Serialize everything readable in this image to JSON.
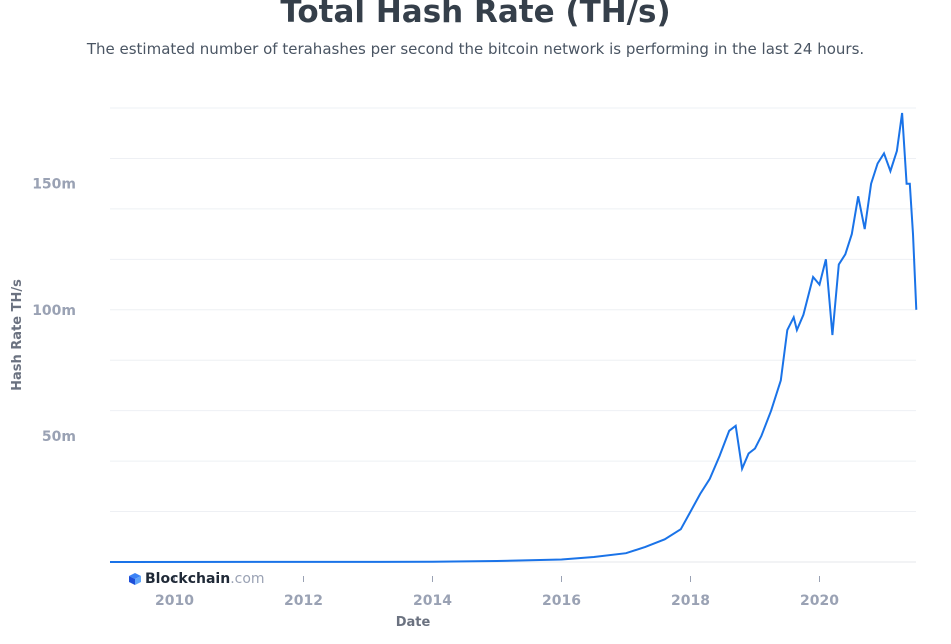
{
  "chart_data": {
    "type": "line",
    "title": "Total Hash Rate (TH/s)",
    "subtitle": "The estimated number of terahashes per second the bitcoin network is performing in the last 24 hours.",
    "xlabel": "Date",
    "ylabel": "Hash Rate TH/s",
    "ylim": [
      0,
      180000000
    ],
    "xlim": [
      2009.0,
      2021.5
    ],
    "y_ticks": [
      {
        "value": 50000000,
        "label": "50m"
      },
      {
        "value": 100000000,
        "label": "100m"
      },
      {
        "value": 150000000,
        "label": "150m"
      }
    ],
    "x_ticks": [
      {
        "value": 2010,
        "label": "2010"
      },
      {
        "value": 2012,
        "label": "2012"
      },
      {
        "value": 2014,
        "label": "2014"
      },
      {
        "value": 2016,
        "label": "2016"
      },
      {
        "value": 2018,
        "label": "2018"
      },
      {
        "value": 2020,
        "label": "2020"
      }
    ],
    "grid": true,
    "line_color": "#1a73e8",
    "series": [
      {
        "x": [
          2009.0,
          2012.0,
          2014.0,
          2015.0,
          2016.0,
          2016.5,
          2017.0,
          2017.3,
          2017.6,
          2017.85,
          2018.0,
          2018.15,
          2018.3,
          2018.45,
          2018.6,
          2018.7,
          2018.8,
          2018.9,
          2019.0,
          2019.1,
          2019.25,
          2019.4,
          2019.5,
          2019.6,
          2019.65,
          2019.75,
          2019.9,
          2020.0,
          2020.1,
          2020.2,
          2020.3,
          2020.4,
          2020.5,
          2020.6,
          2020.7,
          2020.8,
          2020.9,
          2021.0,
          2021.1,
          2021.2,
          2021.28,
          2021.35,
          2021.4,
          2021.45,
          2021.5
        ],
        "y": [
          0,
          20000,
          80000,
          400000,
          1000000,
          2000000,
          3500000,
          6000000,
          9000000,
          13000000,
          20000000,
          27000000,
          33000000,
          42000000,
          52000000,
          54000000,
          37000000,
          43000000,
          45000000,
          50000000,
          60000000,
          72000000,
          92000000,
          97000000,
          92000000,
          98000000,
          113000000,
          110000000,
          120000000,
          90000000,
          118000000,
          122000000,
          130000000,
          145000000,
          132000000,
          150000000,
          158000000,
          162000000,
          155000000,
          163000000,
          178000000,
          150000000,
          150000000,
          130000000,
          100000000
        ]
      }
    ]
  },
  "brand": {
    "name": "Blockchain",
    "tld": ".com"
  }
}
